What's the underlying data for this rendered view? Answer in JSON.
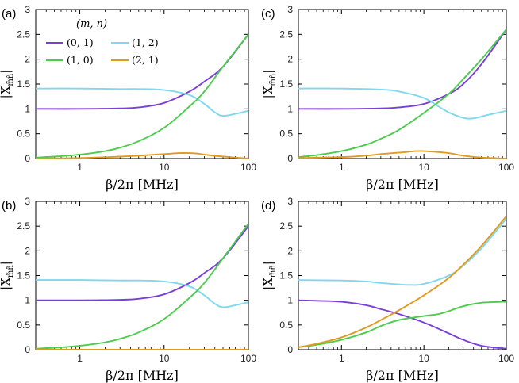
{
  "chart_data": [
    {
      "type": "line",
      "panel_label": "(a)",
      "xlabel": "β/2π [MHz]",
      "ylabel": "|X_m̃ñ|",
      "xscale": "log",
      "xlim": [
        0.3,
        100
      ],
      "ylim": [
        0,
        3
      ],
      "x_ticks": [
        1,
        10,
        100
      ],
      "x_tick_labels": [
        "1",
        "10",
        "100"
      ],
      "y_ticks": [
        0,
        0.5,
        1,
        1.5,
        2,
        2.5,
        3
      ],
      "y_tick_labels": [
        "0",
        "0.5",
        "1",
        "1.5",
        "2",
        "2.5",
        "3"
      ],
      "legend": {
        "title": "(m, n)",
        "location": "top-left",
        "entries": [
          "(0, 1)",
          "(1, 2)",
          "(1, 0)",
          "(2, 1)"
        ]
      },
      "series": [
        {
          "name": "(0, 1)",
          "color": "#7b3fd9",
          "x": [
            0.3,
            1,
            3,
            5,
            10,
            20,
            30,
            50,
            100
          ],
          "y": [
            1.0,
            1.0,
            1.01,
            1.03,
            1.12,
            1.35,
            1.55,
            1.85,
            2.5
          ]
        },
        {
          "name": "(1, 2)",
          "color": "#7fd8ef",
          "x": [
            0.3,
            1,
            3,
            5,
            10,
            20,
            30,
            40,
            50,
            70,
            100
          ],
          "y": [
            1.41,
            1.41,
            1.4,
            1.4,
            1.38,
            1.28,
            1.1,
            0.93,
            0.86,
            0.9,
            0.96
          ]
        },
        {
          "name": "(1, 0)",
          "color": "#4ccc4c",
          "x": [
            0.3,
            0.5,
            1,
            2,
            3,
            5,
            10,
            20,
            30,
            50,
            100
          ],
          "y": [
            0.02,
            0.04,
            0.08,
            0.15,
            0.22,
            0.35,
            0.62,
            1.05,
            1.35,
            1.85,
            2.5
          ]
        },
        {
          "name": "(2, 1)",
          "color": "#e09a1e",
          "x": [
            0.3,
            1,
            3,
            5,
            10,
            15,
            20,
            25,
            30,
            50,
            100
          ],
          "y": [
            0.0,
            0.01,
            0.04,
            0.06,
            0.09,
            0.11,
            0.11,
            0.1,
            0.08,
            0.04,
            0.0
          ]
        }
      ]
    },
    {
      "type": "line",
      "panel_label": "(c)",
      "xlabel": "β/2π [MHz]",
      "ylabel": "|X_m̃ñ|",
      "xscale": "log",
      "xlim": [
        0.3,
        100
      ],
      "ylim": [
        0,
        3
      ],
      "x_ticks": [
        1,
        10,
        100
      ],
      "x_tick_labels": [
        "1",
        "10",
        "100"
      ],
      "y_ticks": [
        0,
        0.5,
        1,
        1.5,
        2,
        2.5,
        3
      ],
      "y_tick_labels": [
        "0",
        "0.5",
        "1",
        "1.5",
        "2",
        "2.5",
        "3"
      ],
      "series": [
        {
          "name": "(0, 1)",
          "color": "#7b3fd9",
          "x": [
            0.3,
            1,
            3,
            5,
            10,
            20,
            30,
            50,
            100
          ],
          "y": [
            1.0,
            1.0,
            1.01,
            1.03,
            1.1,
            1.3,
            1.5,
            1.9,
            2.6
          ]
        },
        {
          "name": "(1, 2)",
          "color": "#7fd8ef",
          "x": [
            0.3,
            1,
            3,
            5,
            10,
            15,
            20,
            30,
            40,
            60,
            100
          ],
          "y": [
            1.41,
            1.41,
            1.39,
            1.35,
            1.22,
            1.05,
            0.93,
            0.82,
            0.81,
            0.88,
            0.96
          ]
        },
        {
          "name": "(1, 0)",
          "color": "#4ccc4c",
          "x": [
            0.3,
            0.5,
            1,
            2,
            3,
            5,
            10,
            20,
            30,
            50,
            100
          ],
          "y": [
            0.03,
            0.07,
            0.15,
            0.28,
            0.4,
            0.58,
            0.92,
            1.3,
            1.6,
            2.0,
            2.6
          ]
        },
        {
          "name": "(2, 1)",
          "color": "#e09a1e",
          "x": [
            0.3,
            1,
            2,
            3,
            5,
            8,
            10,
            15,
            20,
            30,
            50,
            100
          ],
          "y": [
            0.01,
            0.03,
            0.06,
            0.09,
            0.12,
            0.15,
            0.15,
            0.13,
            0.11,
            0.06,
            0.02,
            0.0
          ]
        }
      ]
    },
    {
      "type": "line",
      "panel_label": "(b)",
      "xlabel": "β/2π [MHz]",
      "ylabel": "|X_m̃ñ|",
      "xscale": "log",
      "xlim": [
        0.3,
        100
      ],
      "ylim": [
        0,
        3
      ],
      "x_ticks": [
        1,
        10,
        100
      ],
      "x_tick_labels": [
        "1",
        "10",
        "100"
      ],
      "y_ticks": [
        0,
        0.5,
        1,
        1.5,
        2,
        2.5,
        3
      ],
      "y_tick_labels": [
        "0",
        "0.5",
        "1",
        "1.5",
        "2",
        "2.5",
        "3"
      ],
      "series": [
        {
          "name": "(0, 1)",
          "color": "#7b3fd9",
          "x": [
            0.3,
            1,
            3,
            5,
            10,
            20,
            30,
            50,
            100
          ],
          "y": [
            1.0,
            1.0,
            1.01,
            1.03,
            1.12,
            1.35,
            1.55,
            1.85,
            2.5
          ]
        },
        {
          "name": "(1, 2)",
          "color": "#7fd8ef",
          "x": [
            0.3,
            1,
            3,
            5,
            10,
            20,
            30,
            40,
            50,
            70,
            100
          ],
          "y": [
            1.41,
            1.41,
            1.4,
            1.4,
            1.38,
            1.28,
            1.1,
            0.93,
            0.86,
            0.9,
            0.96
          ]
        },
        {
          "name": "(1, 0)",
          "color": "#4ccc4c",
          "x": [
            0.3,
            0.5,
            1,
            2,
            3,
            5,
            10,
            20,
            30,
            50,
            100
          ],
          "y": [
            0.02,
            0.04,
            0.08,
            0.15,
            0.22,
            0.35,
            0.62,
            1.05,
            1.35,
            1.85,
            2.55
          ]
        },
        {
          "name": "(2, 1)",
          "color": "#e09a1e",
          "x": [
            0.3,
            1,
            10,
            100
          ],
          "y": [
            0.0,
            0.0,
            0.0,
            0.0
          ]
        }
      ]
    },
    {
      "type": "line",
      "panel_label": "(d)",
      "xlabel": "β/2π [MHz]",
      "ylabel": "|X_m̃ñ|",
      "xscale": "log",
      "xlim": [
        0.3,
        100
      ],
      "ylim": [
        0,
        3
      ],
      "x_ticks": [
        1,
        10,
        100
      ],
      "x_tick_labels": [
        "1",
        "10",
        "100"
      ],
      "y_ticks": [
        0,
        0.5,
        1,
        1.5,
        2,
        2.5,
        3
      ],
      "y_tick_labels": [
        "0",
        "0.5",
        "1",
        "1.5",
        "2",
        "2.5",
        "3"
      ],
      "series": [
        {
          "name": "(0, 1)",
          "color": "#7b3fd9",
          "x": [
            0.3,
            0.5,
            1,
            2,
            3,
            5,
            10,
            20,
            30,
            50,
            100
          ],
          "y": [
            1.0,
            0.99,
            0.97,
            0.9,
            0.82,
            0.72,
            0.55,
            0.33,
            0.2,
            0.08,
            0.02
          ]
        },
        {
          "name": "(1, 2)",
          "color": "#7fd8ef",
          "x": [
            0.3,
            1,
            2,
            3,
            5,
            7,
            10,
            20,
            30,
            50,
            100
          ],
          "y": [
            1.41,
            1.4,
            1.38,
            1.35,
            1.32,
            1.31,
            1.33,
            1.5,
            1.7,
            2.05,
            2.65
          ]
        },
        {
          "name": "(1, 0)",
          "color": "#4ccc4c",
          "x": [
            0.3,
            0.5,
            1,
            2,
            3,
            5,
            10,
            15,
            20,
            30,
            50,
            100
          ],
          "y": [
            0.05,
            0.1,
            0.2,
            0.35,
            0.48,
            0.6,
            0.68,
            0.72,
            0.78,
            0.88,
            0.95,
            0.97
          ]
        },
        {
          "name": "(2, 1)",
          "color": "#e09a1e",
          "x": [
            0.3,
            0.5,
            1,
            2,
            3,
            5,
            10,
            20,
            30,
            50,
            100
          ],
          "y": [
            0.05,
            0.12,
            0.25,
            0.45,
            0.6,
            0.8,
            1.1,
            1.45,
            1.72,
            2.1,
            2.7
          ]
        }
      ]
    }
  ]
}
